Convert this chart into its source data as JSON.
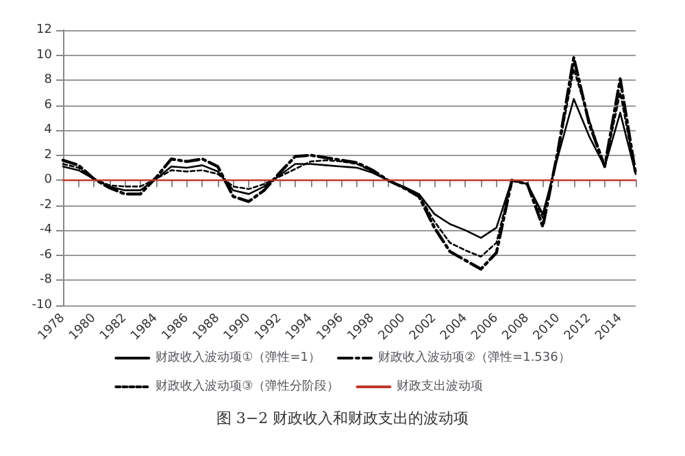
{
  "chart_data": {
    "type": "line",
    "categories": [
      "1978",
      null,
      "1980",
      null,
      "1982",
      null,
      "1984",
      null,
      "1986",
      null,
      "1988",
      null,
      "1990",
      null,
      "1992",
      null,
      "1994",
      null,
      "1996",
      null,
      "1998",
      null,
      "2000",
      null,
      "2002",
      null,
      "2004",
      null,
      "2006",
      null,
      "2008",
      null,
      "2010",
      null,
      "2012",
      null,
      "2014",
      null
    ],
    "series": [
      {
        "name": "财政收入波动项①（弹性=1）",
        "color": "#000000",
        "line_style": "solid",
        "values": [
          1.1,
          0.8,
          0.1,
          -0.5,
          -0.8,
          -0.8,
          0.1,
          1.1,
          1.0,
          1.2,
          0.7,
          -0.8,
          -1.1,
          -0.5,
          0.4,
          1.3,
          1.3,
          1.2,
          1.1,
          1.0,
          0.6,
          0.0,
          -0.5,
          -1.1,
          -2.7,
          -3.5,
          -4.0,
          -4.6,
          -3.8,
          0.0,
          -0.3,
          -2.7,
          2.0,
          6.5,
          3.5,
          1.1,
          5.4,
          0.5
        ]
      },
      {
        "name": "财政收入波动项②（弹性=1.536）",
        "color": "#000000",
        "line_style": "dashed",
        "values": [
          1.6,
          1.2,
          0.1,
          -0.6,
          -1.1,
          -1.1,
          0.2,
          1.7,
          1.5,
          1.7,
          1.1,
          -1.3,
          -1.7,
          -0.8,
          0.6,
          1.9,
          2.0,
          1.8,
          1.6,
          1.4,
          0.8,
          0.0,
          -0.6,
          -1.3,
          -3.8,
          -5.7,
          -6.4,
          -7.1,
          -5.8,
          0.0,
          -0.3,
          -3.7,
          2.5,
          9.8,
          4.5,
          1.1,
          8.1,
          0.5
        ]
      },
      {
        "name": "财政收入波动项③（弹性分阶段）",
        "color": "#000000",
        "line_style": "dotted",
        "values": [
          1.3,
          1.0,
          0.1,
          -0.4,
          -0.5,
          -0.5,
          0.1,
          0.8,
          0.7,
          0.8,
          0.5,
          -0.5,
          -0.7,
          -0.3,
          0.3,
          0.9,
          1.5,
          1.6,
          1.5,
          1.3,
          0.7,
          0.0,
          -0.6,
          -1.2,
          -3.3,
          -5.0,
          -5.6,
          -6.1,
          -5.0,
          0.0,
          -0.3,
          -3.0,
          2.3,
          8.9,
          4.8,
          1.1,
          7.0,
          0.5
        ]
      },
      {
        "name": "财政支出波动项",
        "color": "#c0392b",
        "line_style": "solid",
        "values": [
          0,
          0,
          0,
          0,
          0,
          0,
          0,
          0,
          0,
          0,
          0,
          0,
          0,
          0,
          0,
          0,
          0,
          0,
          0,
          0,
          0,
          0,
          0,
          0,
          0,
          0,
          0,
          0,
          0,
          0,
          0,
          0,
          0,
          0,
          0,
          0,
          0,
          0
        ]
      }
    ],
    "ylim": [
      -10,
      12
    ],
    "yticks": [
      -10,
      -8,
      -6,
      -4,
      -2,
      0,
      2,
      4,
      6,
      8,
      10,
      12
    ],
    "grid": "y",
    "legend": "bottom",
    "marker": "none",
    "annotations": [
      "图 3−2 财政收入和财政支出的波动项"
    ]
  }
}
